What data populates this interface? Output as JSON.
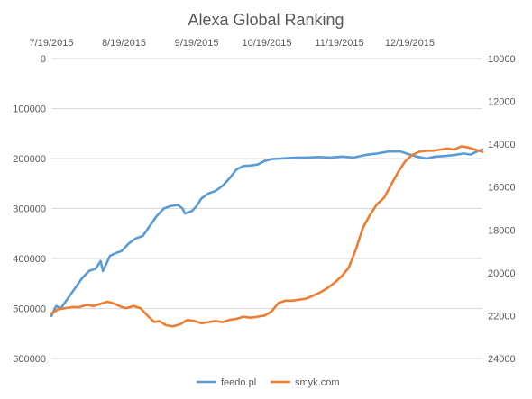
{
  "chart_data": {
    "type": "line",
    "title": "Alexa Global Ranking",
    "x_ticks": [
      "7/19/2015",
      "8/19/2015",
      "9/19/2015",
      "10/19/2015",
      "11/19/2015",
      "12/19/2015"
    ],
    "x_range": [
      "7/19/2015",
      "1/19/2016"
    ],
    "y_left": {
      "range": [
        0,
        600000
      ],
      "reversed": true,
      "ticks": [
        0,
        100000,
        200000,
        300000,
        400000,
        500000,
        600000
      ],
      "tick_labels": [
        "0",
        "100000",
        "200000",
        "300000",
        "400000",
        "500000",
        "600000"
      ]
    },
    "y_right": {
      "range": [
        10000,
        24000
      ],
      "reversed": true,
      "ticks": [
        10000,
        12000,
        14000,
        16000,
        18000,
        20000,
        22000,
        24000
      ],
      "tick_labels": [
        "10000",
        "12000",
        "14000",
        "16000",
        "18000",
        "20000",
        "22000",
        "24000"
      ]
    },
    "grid": true,
    "legend_position": "bottom",
    "series": [
      {
        "name": "feedo.pl",
        "axis": "left",
        "color": "#5b9bd5",
        "points": [
          [
            "7/19/2015",
            515000
          ],
          [
            "7/21/2015",
            495000
          ],
          [
            "7/23/2015",
            500000
          ],
          [
            "7/26/2015",
            480000
          ],
          [
            "7/29/2015",
            460000
          ],
          [
            "8/1/2015",
            440000
          ],
          [
            "8/4/2015",
            425000
          ],
          [
            "8/7/2015",
            420000
          ],
          [
            "8/9/2015",
            405000
          ],
          [
            "8/10/2015",
            425000
          ],
          [
            "8/13/2015",
            395000
          ],
          [
            "8/15/2015",
            390000
          ],
          [
            "8/18/2015",
            385000
          ],
          [
            "8/21/2015",
            370000
          ],
          [
            "8/24/2015",
            360000
          ],
          [
            "8/27/2015",
            355000
          ],
          [
            "8/30/2015",
            335000
          ],
          [
            "9/2/2015",
            315000
          ],
          [
            "9/5/2015",
            300000
          ],
          [
            "9/8/2015",
            295000
          ],
          [
            "9/11/2015",
            293000
          ],
          [
            "9/13/2015",
            300000
          ],
          [
            "9/14/2015",
            310000
          ],
          [
            "9/17/2015",
            305000
          ],
          [
            "9/19/2015",
            295000
          ],
          [
            "9/21/2015",
            280000
          ],
          [
            "9/24/2015",
            270000
          ],
          [
            "9/27/2015",
            265000
          ],
          [
            "9/30/2015",
            255000
          ],
          [
            "10/3/2015",
            240000
          ],
          [
            "10/6/2015",
            222000
          ],
          [
            "10/9/2015",
            215000
          ],
          [
            "10/12/2015",
            214000
          ],
          [
            "10/15/2015",
            212000
          ],
          [
            "10/18/2015",
            205000
          ],
          [
            "10/21/2015",
            201000
          ],
          [
            "10/25/2015",
            200000
          ],
          [
            "10/28/2015",
            199000
          ],
          [
            "11/1/2015",
            198000
          ],
          [
            "11/5/2015",
            198000
          ],
          [
            "11/10/2015",
            197000
          ],
          [
            "11/15/2015",
            198000
          ],
          [
            "11/20/2015",
            196000
          ],
          [
            "11/25/2015",
            198000
          ],
          [
            "11/30/2015",
            193000
          ],
          [
            "12/5/2015",
            190000
          ],
          [
            "12/10/2015",
            186000
          ],
          [
            "12/15/2015",
            186000
          ],
          [
            "12/19/2015",
            192000
          ],
          [
            "12/22/2015",
            196000
          ],
          [
            "12/26/2015",
            200000
          ],
          [
            "12/30/2015",
            196000
          ],
          [
            "1/3/2016",
            195000
          ],
          [
            "1/7/2016",
            193000
          ],
          [
            "1/11/2016",
            190000
          ],
          [
            "1/14/2016",
            192000
          ],
          [
            "1/17/2016",
            185000
          ],
          [
            "1/19/2016",
            182000
          ]
        ]
      },
      {
        "name": "smyk.com",
        "axis": "right",
        "color": "#ed7d31",
        "points": [
          [
            "7/19/2015",
            21900
          ],
          [
            "7/22/2015",
            21700
          ],
          [
            "7/25/2015",
            21650
          ],
          [
            "7/28/2015",
            21600
          ],
          [
            "7/31/2015",
            21600
          ],
          [
            "8/3/2015",
            21500
          ],
          [
            "8/6/2015",
            21550
          ],
          [
            "8/9/2015",
            21450
          ],
          [
            "8/12/2015",
            21350
          ],
          [
            "8/15/2015",
            21450
          ],
          [
            "8/18/2015",
            21600
          ],
          [
            "8/20/2015",
            21650
          ],
          [
            "8/23/2015",
            21550
          ],
          [
            "8/26/2015",
            21650
          ],
          [
            "8/29/2015",
            22000
          ],
          [
            "9/1/2015",
            22300
          ],
          [
            "9/3/2015",
            22250
          ],
          [
            "9/6/2015",
            22450
          ],
          [
            "9/9/2015",
            22500
          ],
          [
            "9/12/2015",
            22400
          ],
          [
            "9/15/2015",
            22200
          ],
          [
            "9/18/2015",
            22250
          ],
          [
            "9/21/2015",
            22350
          ],
          [
            "9/24/2015",
            22300
          ],
          [
            "9/27/2015",
            22250
          ],
          [
            "9/30/2015",
            22300
          ],
          [
            "10/3/2015",
            22200
          ],
          [
            "10/6/2015",
            22150
          ],
          [
            "10/9/2015",
            22050
          ],
          [
            "10/12/2015",
            22100
          ],
          [
            "10/15/2015",
            22050
          ],
          [
            "10/18/2015",
            22000
          ],
          [
            "10/21/2015",
            21800
          ],
          [
            "10/24/2015",
            21400
          ],
          [
            "10/27/2015",
            21300
          ],
          [
            "10/30/2015",
            21300
          ],
          [
            "11/2/2015",
            21250
          ],
          [
            "11/5/2015",
            21200
          ],
          [
            "11/8/2015",
            21050
          ],
          [
            "11/11/2015",
            20900
          ],
          [
            "11/14/2015",
            20700
          ],
          [
            "11/17/2015",
            20450
          ],
          [
            "11/20/2015",
            20150
          ],
          [
            "11/23/2015",
            19750
          ],
          [
            "11/26/2015",
            18900
          ],
          [
            "11/29/2015",
            17900
          ],
          [
            "12/2/2015",
            17300
          ],
          [
            "12/5/2015",
            16800
          ],
          [
            "12/8/2015",
            16500
          ],
          [
            "12/11/2015",
            15900
          ],
          [
            "12/14/2015",
            15300
          ],
          [
            "12/17/2015",
            14800
          ],
          [
            "12/20/2015",
            14500
          ],
          [
            "12/23/2015",
            14350
          ],
          [
            "12/26/2015",
            14300
          ],
          [
            "12/29/2015",
            14300
          ],
          [
            "1/1/2016",
            14250
          ],
          [
            "1/4/2016",
            14200
          ],
          [
            "1/7/2016",
            14250
          ],
          [
            "1/10/2016",
            14100
          ],
          [
            "1/13/2016",
            14150
          ],
          [
            "1/16/2016",
            14250
          ],
          [
            "1/19/2016",
            14350
          ]
        ]
      }
    ]
  }
}
